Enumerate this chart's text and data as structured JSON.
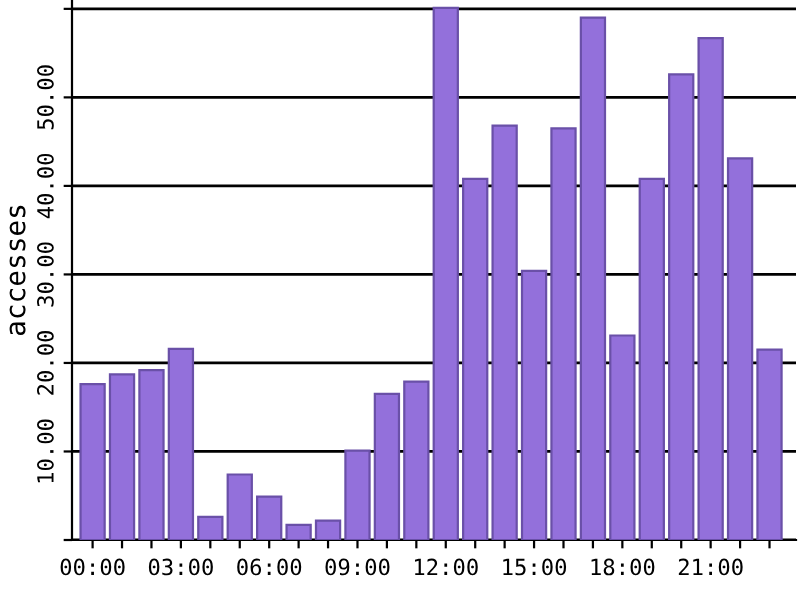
{
  "chart_data": {
    "type": "bar",
    "ylabel": "accesses",
    "categories": [
      "00:00",
      null,
      null,
      "03:00",
      null,
      null,
      "06:00",
      null,
      null,
      "09:00",
      null,
      null,
      "12:00",
      null,
      null,
      "15:00",
      null,
      null,
      "18:00",
      null,
      null,
      "21:00",
      null,
      null
    ],
    "values": [
      17.6,
      18.7,
      19.2,
      21.6,
      2.6,
      7.4,
      4.9,
      1.7,
      2.2,
      10.1,
      16.5,
      17.9,
      60.1,
      40.8,
      46.8,
      30.4,
      46.5,
      59.0,
      23.1,
      40.8,
      52.6,
      56.7,
      43.1,
      21.5
    ],
    "color": "#9370db",
    "ylim": [
      0,
      61
    ],
    "yticks": [
      {
        "value": 0,
        "label": null
      },
      {
        "value": 10,
        "label": "10.00"
      },
      {
        "value": 20,
        "label": "20.00"
      },
      {
        "value": 30,
        "label": "30.00"
      },
      {
        "value": 40,
        "label": "40.00"
      },
      {
        "value": 50,
        "label": "50.00"
      },
      {
        "value": 60,
        "label": null
      }
    ],
    "grid": "y",
    "legend": false
  }
}
